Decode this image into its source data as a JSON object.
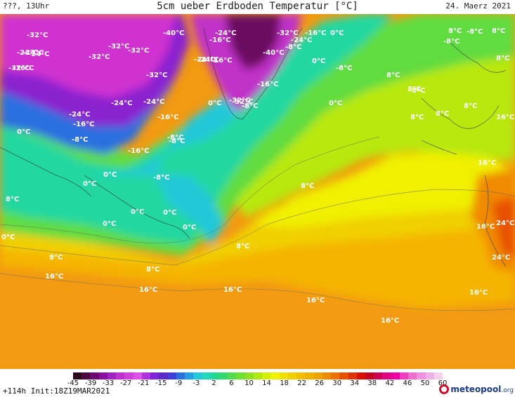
{
  "header": {
    "left": "???, 13Uhr",
    "title": "5cm ueber Erdboden Temperatur [°C]",
    "date": "24. Maerz 2021"
  },
  "footer": {
    "init": "+114h Init:18Z19MAR2021",
    "logo_main": "meteopool",
    "logo_suffix": ".org"
  },
  "legend": {
    "ticks": [
      "-45",
      "-39",
      "-33",
      "-27",
      "-21",
      "-15",
      "-9",
      "-3",
      "2",
      "6",
      "10",
      "14",
      "18",
      "22",
      "26",
      "30",
      "34",
      "38",
      "42",
      "46",
      "50",
      "60"
    ],
    "colors": [
      "#2a0a1a",
      "#4a0a40",
      "#6a0a70",
      "#8a10a0",
      "#a020c0",
      "#c030d0",
      "#d040e0",
      "#e050e8",
      "#b030e0",
      "#8020d8",
      "#5a2ac8",
      "#3a40d8",
      "#2a70e0",
      "#20a0e0",
      "#20c8d8",
      "#20d8b8",
      "#20d890",
      "#30d870",
      "#50dc50",
      "#70e030",
      "#90e020",
      "#b0e810",
      "#d0f000",
      "#f0f000",
      "#f0e000",
      "#f0d000",
      "#f0c000",
      "#f0b000",
      "#f0a000",
      "#f08a00",
      "#f07000",
      "#e85000",
      "#e03000",
      "#d81000",
      "#c80020",
      "#d00050",
      "#e00080",
      "#f000a0",
      "#f040c0",
      "#f070d0",
      "#f090e0",
      "#f0b0e8",
      "#f8d0f0"
    ]
  },
  "map_labels": [
    {
      "text": "-32°C"
    },
    {
      "text": "-40°C"
    },
    {
      "text": "-24°C"
    },
    {
      "text": "-32°C"
    },
    {
      "text": "-24°C"
    },
    {
      "text": "0°C"
    },
    {
      "text": "-8°C"
    },
    {
      "text": "-8°C"
    },
    {
      "text": "8°C"
    },
    {
      "text": "8°C"
    },
    {
      "text": "-24°C"
    },
    {
      "text": "-32°C"
    },
    {
      "text": "-32°C"
    },
    {
      "text": "-32°C"
    },
    {
      "text": "-16°C"
    },
    {
      "text": "-32°C"
    },
    {
      "text": "-24°C"
    },
    {
      "text": "-16°C"
    },
    {
      "text": "-16°C"
    },
    {
      "text": "-40°C"
    },
    {
      "text": "-24°C"
    },
    {
      "text": "-16°C"
    },
    {
      "text": "0°C"
    },
    {
      "text": "-8°C"
    },
    {
      "text": "-32°C"
    },
    {
      "text": "-24°C"
    },
    {
      "text": "-8°C"
    },
    {
      "text": "-32°C"
    },
    {
      "text": "-24°C"
    },
    {
      "text": "-8°C"
    },
    {
      "text": "-16°C"
    },
    {
      "text": "8°C"
    },
    {
      "text": "8°C"
    },
    {
      "text": "-24°C"
    },
    {
      "text": "0°C"
    },
    {
      "text": "-16°C"
    },
    {
      "text": "-24°C"
    },
    {
      "text": "-16°C"
    },
    {
      "text": "-24°C"
    },
    {
      "text": "0°C"
    },
    {
      "text": "-32°C"
    },
    {
      "text": "-8°C"
    },
    {
      "text": "8°C"
    },
    {
      "text": "8°C"
    },
    {
      "text": "8°C"
    },
    {
      "text": "8°C"
    },
    {
      "text": "16°C"
    },
    {
      "text": "-8°C"
    },
    {
      "text": "0°C"
    },
    {
      "text": "-16°C"
    },
    {
      "text": "-8°C"
    },
    {
      "text": "0°C"
    },
    {
      "text": "0°C"
    },
    {
      "text": "-8°C"
    },
    {
      "text": "0°C"
    },
    {
      "text": "8°C"
    },
    {
      "text": "16°C"
    },
    {
      "text": "8°C"
    },
    {
      "text": "0°C"
    },
    {
      "text": "0°C"
    },
    {
      "text": "0°C"
    },
    {
      "text": "24°C"
    },
    {
      "text": "8°C"
    },
    {
      "text": "0°C"
    },
    {
      "text": "16°C"
    },
    {
      "text": "8°C"
    },
    {
      "text": "8°C"
    },
    {
      "text": "24°C"
    },
    {
      "text": "8°C"
    },
    {
      "text": "16°C"
    },
    {
      "text": "16°C"
    },
    {
      "text": "16°C"
    },
    {
      "text": "16°C"
    },
    {
      "text": "16°C"
    },
    {
      "text": "16°C"
    }
  ]
}
